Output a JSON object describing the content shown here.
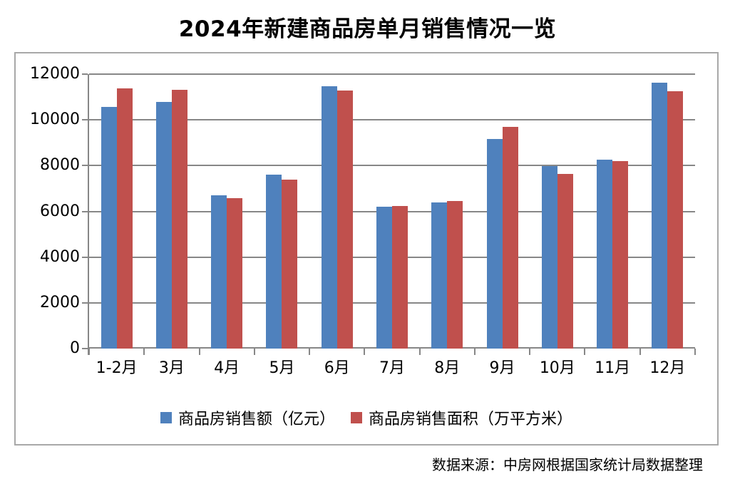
{
  "title": "2024年新建商品房单月销售情况一览",
  "source_note": "数据来源：中房网根据国家统计局数据整理",
  "colors": {
    "series_sales_amount": "#4F81BD",
    "series_sales_area": "#C0504D",
    "grid": "#878787",
    "axis": "#878787",
    "chart_border": "#A8A8A8",
    "title_text": "#000000"
  },
  "chart_data": {
    "type": "bar",
    "title": "2024年新建商品房单月销售情况一览",
    "categories": [
      "1-2月",
      "3月",
      "4月",
      "5月",
      "6月",
      "7月",
      "8月",
      "9月",
      "10月",
      "11月",
      "12月"
    ],
    "series": [
      {
        "name": "商品房销售额（亿元）",
        "color": "#4F81BD",
        "values": [
          10566,
          10789,
          6712,
          7598,
          11468,
          6197,
          6393,
          9157,
          7975,
          8270,
          11625
        ]
      },
      {
        "name": "商品房销售面积（万平方米）",
        "color": "#C0504D",
        "values": [
          11369,
          11299,
          6584,
          7390,
          11274,
          6233,
          6453,
          9682,
          7646,
          8188,
          11267
        ]
      }
    ],
    "xlabel": "",
    "ylabel": "",
    "ylim": [
      0,
      12000
    ],
    "yticks": [
      0,
      2000,
      4000,
      6000,
      8000,
      10000,
      12000
    ],
    "grid": true,
    "legend_position": "bottom"
  }
}
